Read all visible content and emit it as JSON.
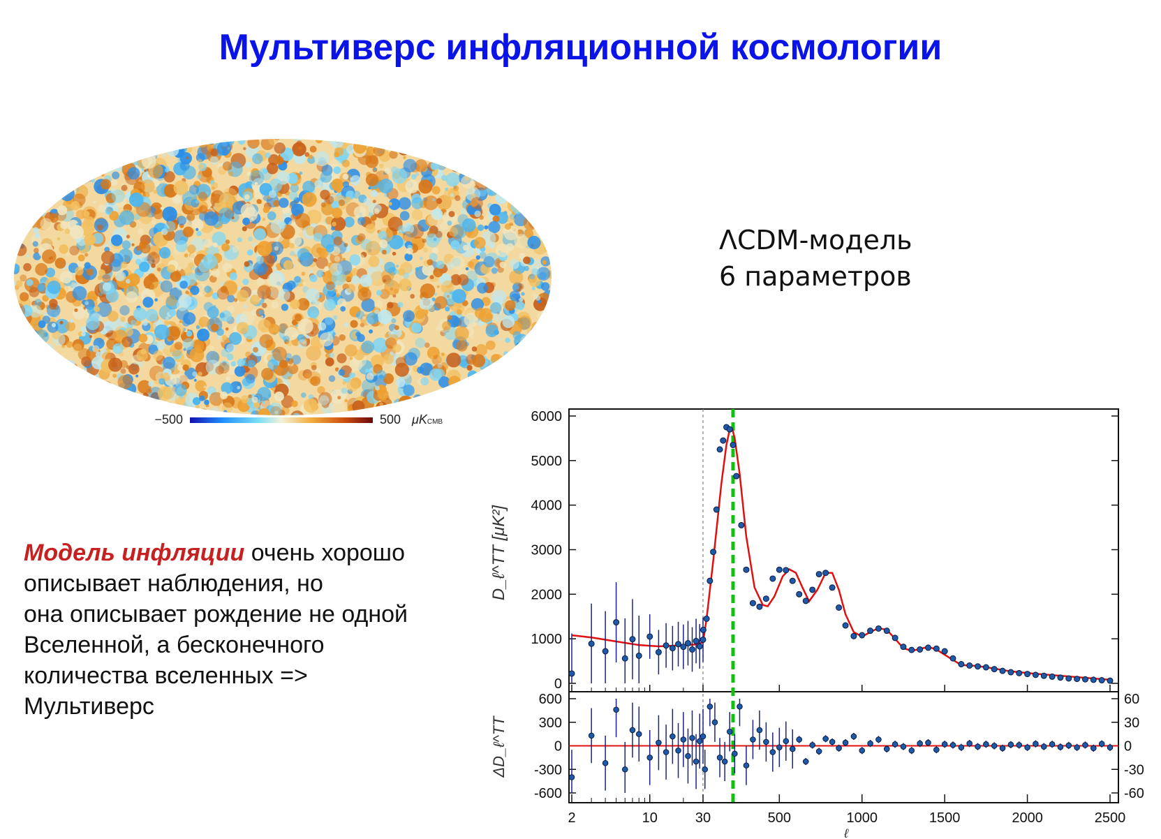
{
  "slide": {
    "title": "Мультиверс инфляционной космологии",
    "model_line1": "ΛCDM-модель",
    "model_line2": "6 параметров",
    "text": {
      "highlight": "Модель инфляции",
      "line1_rest": " очень хорошо",
      "line2": "описывает наблюдения, но",
      "line3": "она описывает рождение не одной",
      "line4": "Вселенной, а бесконечного",
      "line5": "количества вселенных =>",
      "line6": "Мультиверс"
    },
    "colors": {
      "title": "#0a14e6",
      "highlight": "#c62020"
    }
  },
  "cmb_map": {
    "colorbar_min": "−500",
    "colorbar_max": "500",
    "colorbar_unit": "μK",
    "colorbar_unit_sub": "CMB",
    "colors": [
      "#1010b0",
      "#1e90ff",
      "#7fe0f8",
      "#f5f0d8",
      "#f2b040",
      "#d05010",
      "#6a0a0a"
    ]
  },
  "chart_data": {
    "type": "scatter",
    "title": "",
    "xlabel": "ℓ",
    "x_ticks": [
      "2",
      "10",
      "30",
      "500",
      "1000",
      "1500",
      "2000",
      "2500"
    ],
    "x_scale": "log for ℓ ≤ 30, linear above",
    "top_panel": {
      "ylabel": "D_ℓ^TT [μK²]",
      "ylim": [
        0,
        6000
      ],
      "y_ticks": [
        "0",
        "1000",
        "2000",
        "3000",
        "4000",
        "5000",
        "6000"
      ],
      "series": [
        {
          "type": "line",
          "color": "#e01010",
          "x": [
            2,
            3,
            5,
            8,
            12,
            18,
            25,
            30,
            60,
            100,
            150,
            180,
            200,
            215,
            230,
            260,
            300,
            350,
            400,
            430,
            470,
            520,
            560,
            600,
            640,
            680,
            730,
            780,
            820,
            860,
            900,
            950,
            1000,
            1050,
            1100,
            1150,
            1200,
            1250,
            1300,
            1350,
            1400,
            1450,
            1500,
            1600,
            1700,
            1800,
            1900,
            2000,
            2100,
            2200,
            2300,
            2400,
            2500
          ],
          "y": [
            1080,
            1030,
            940,
            860,
            830,
            850,
            870,
            920,
            1450,
            2750,
            4500,
            5350,
            5700,
            5720,
            5500,
            4700,
            3300,
            2150,
            1760,
            1730,
            1950,
            2400,
            2560,
            2480,
            2150,
            1840,
            2100,
            2480,
            2480,
            2100,
            1550,
            1150,
            1050,
            1150,
            1240,
            1200,
            1000,
            790,
            730,
            770,
            820,
            760,
            640,
            410,
            390,
            330,
            270,
            230,
            200,
            170,
            140,
            110,
            80
          ]
        },
        {
          "type": "points",
          "color": "#1e5aa8",
          "x": [
            2,
            3,
            4,
            5,
            6,
            7,
            8,
            10,
            12,
            14,
            16,
            18,
            20,
            22,
            24,
            26,
            28,
            30,
            40,
            60,
            80,
            100,
            120,
            140,
            160,
            180,
            200,
            220,
            240,
            270,
            300,
            340,
            380,
            420,
            460,
            500,
            540,
            580,
            620,
            660,
            700,
            740,
            780,
            820,
            860,
            900,
            950,
            1000,
            1050,
            1100,
            1150,
            1200,
            1250,
            1300,
            1350,
            1400,
            1450,
            1500,
            1550,
            1600,
            1650,
            1700,
            1750,
            1800,
            1850,
            1900,
            1950,
            2000,
            2050,
            2100,
            2150,
            2200,
            2250,
            2300,
            2350,
            2400,
            2450,
            2500
          ],
          "y": [
            220,
            890,
            720,
            1370,
            560,
            990,
            620,
            1050,
            700,
            850,
            790,
            880,
            820,
            900,
            760,
            950,
            830,
            980,
            1200,
            1450,
            2300,
            2950,
            3900,
            5250,
            5450,
            5750,
            5700,
            5350,
            4650,
            3550,
            2550,
            1800,
            1720,
            1900,
            2350,
            2550,
            2540,
            2300,
            2000,
            1850,
            2100,
            2450,
            2480,
            2150,
            1700,
            1300,
            1060,
            1080,
            1180,
            1230,
            1180,
            1020,
            820,
            750,
            760,
            800,
            780,
            720,
            560,
            430,
            400,
            380,
            360,
            320,
            280,
            250,
            230,
            210,
            190,
            170,
            150,
            130,
            110,
            100,
            90,
            80,
            70,
            60
          ]
        }
      ]
    },
    "bottom_panel": {
      "ylabel": "ΔD_ℓ^TT",
      "ylim": [
        -600,
        600
      ],
      "y_ticks_left": [
        "600",
        "300",
        "0",
        "-300",
        "-600"
      ],
      "y_ticks_right": [
        "60",
        "30",
        "0",
        "-30",
        "-60"
      ],
      "series": [
        {
          "type": "points",
          "color": "#1e5aa8",
          "x": [
            2,
            3,
            4,
            5,
            6,
            7,
            8,
            10,
            12,
            14,
            16,
            18,
            20,
            22,
            24,
            26,
            28,
            30,
            50,
            80,
            110,
            140,
            170,
            200,
            230,
            260,
            300,
            340,
            380,
            420,
            460,
            500,
            540,
            580,
            620,
            660,
            700,
            740,
            780,
            820,
            860,
            900,
            950,
            1000,
            1050,
            1100,
            1150,
            1200,
            1250,
            1300,
            1350,
            1400,
            1450,
            1500,
            1550,
            1600,
            1650,
            1700,
            1750,
            1800,
            1850,
            1900,
            1950,
            2000,
            2050,
            2100,
            2150,
            2200,
            2250,
            2300,
            2350,
            2400,
            2450,
            2500
          ],
          "y": [
            -400,
            130,
            -220,
            460,
            -300,
            200,
            150,
            -150,
            40,
            -80,
            120,
            -60,
            80,
            -130,
            100,
            -200,
            60,
            120,
            -300,
            500,
            300,
            -150,
            -200,
            180,
            -100,
            500,
            -250,
            80,
            200,
            50,
            -80,
            -20,
            60,
            -40,
            80,
            -200,
            10,
            -70,
            90,
            50,
            -30,
            40,
            120,
            -60,
            30,
            80,
            -40,
            20,
            -10,
            -60,
            30,
            40,
            -50,
            20,
            10,
            -20,
            30,
            -10,
            20,
            0,
            -30,
            15,
            10,
            -20,
            25,
            -10,
            20,
            -15,
            5,
            -20,
            10,
            -30,
            25,
            -20
          ]
        }
      ]
    },
    "vertical_lines": [
      {
        "x": 30,
        "style": "dashed",
        "color": "#888888"
      },
      {
        "x": 220,
        "style": "dashed",
        "color": "#12c012"
      }
    ]
  }
}
